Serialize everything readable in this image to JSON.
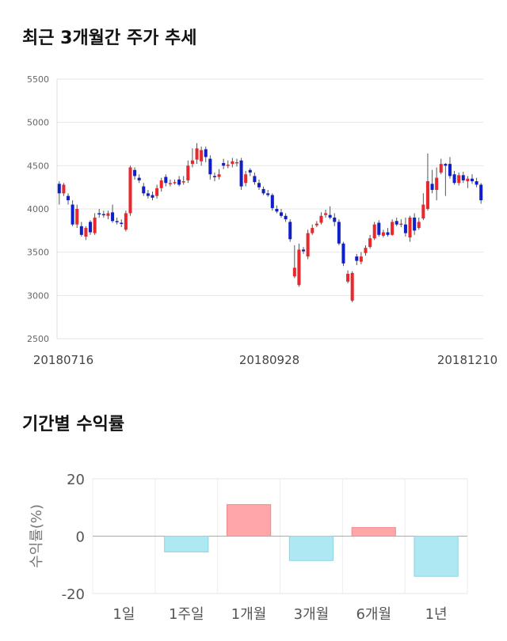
{
  "page": {
    "title_price": "최근 3개월간 주가 추세",
    "title_returns": "기간별 수익률"
  },
  "colors": {
    "up": "#e8282c",
    "down": "#1020c8",
    "pos_bar": "#ffa6a8",
    "neg_bar": "#aee8f2"
  },
  "chart_data": [
    {
      "type": "candlestick",
      "title": "최근 3개월간 주가 추세",
      "ylim": [
        2500,
        5500
      ],
      "y_ticks": [
        5500,
        5000,
        4500,
        4000,
        3500,
        3000,
        2500
      ],
      "x_tick_labels": [
        "20180716",
        "20180928",
        "20181210"
      ],
      "candles": [
        [
          4290,
          4180,
          4320,
          4050
        ],
        [
          4180,
          4280,
          4300,
          4150
        ],
        [
          4150,
          4100,
          4180,
          4050
        ],
        [
          4050,
          3820,
          4100,
          3800
        ],
        [
          3820,
          4000,
          4050,
          3780
        ],
        [
          3800,
          3700,
          3850,
          3680
        ],
        [
          3680,
          3780,
          3800,
          3640
        ],
        [
          3850,
          3730,
          3870,
          3700
        ],
        [
          3720,
          3900,
          3950,
          3700
        ],
        [
          3950,
          3940,
          4000,
          3900
        ],
        [
          3940,
          3930,
          3980,
          3900
        ],
        [
          3920,
          3950,
          3980,
          3880
        ],
        [
          3960,
          3860,
          4050,
          3840
        ],
        [
          3860,
          3850,
          3900,
          3820
        ],
        [
          3840,
          3830,
          3880,
          3790
        ],
        [
          3760,
          3950,
          3980,
          3740
        ],
        [
          3950,
          4480,
          4500,
          3920
        ],
        [
          4450,
          4380,
          4480,
          4340
        ],
        [
          4360,
          4330,
          4400,
          4300
        ],
        [
          4260,
          4180,
          4300,
          4150
        ],
        [
          4180,
          4150,
          4220,
          4120
        ],
        [
          4160,
          4130,
          4200,
          4100
        ],
        [
          4150,
          4240,
          4280,
          4120
        ],
        [
          4240,
          4330,
          4360,
          4200
        ],
        [
          4370,
          4300,
          4400,
          4260
        ],
        [
          4290,
          4300,
          4340,
          4260
        ],
        [
          4300,
          4310,
          4340,
          4280
        ],
        [
          4340,
          4280,
          4380,
          4260
        ],
        [
          4310,
          4320,
          4380,
          4280
        ],
        [
          4330,
          4500,
          4560,
          4300
        ],
        [
          4520,
          4560,
          4700,
          4480
        ],
        [
          4570,
          4700,
          4760,
          4520
        ],
        [
          4550,
          4680,
          4720,
          4500
        ],
        [
          4690,
          4600,
          4720,
          4540
        ],
        [
          4580,
          4400,
          4620,
          4340
        ],
        [
          4380,
          4370,
          4420,
          4320
        ],
        [
          4370,
          4400,
          4460,
          4340
        ],
        [
          4530,
          4500,
          4580,
          4460
        ],
        [
          4500,
          4510,
          4560,
          4470
        ],
        [
          4520,
          4550,
          4590,
          4480
        ],
        [
          4540,
          4540,
          4580,
          4490
        ],
        [
          4560,
          4260,
          4590,
          4220
        ],
        [
          4300,
          4400,
          4440,
          4260
        ],
        [
          4450,
          4420,
          4470,
          4380
        ],
        [
          4380,
          4310,
          4420,
          4280
        ],
        [
          4300,
          4250,
          4340,
          4220
        ],
        [
          4230,
          4180,
          4260,
          4160
        ],
        [
          4180,
          4160,
          4220,
          4140
        ],
        [
          4160,
          4010,
          4180,
          3980
        ],
        [
          4000,
          3970,
          4040,
          3950
        ],
        [
          3960,
          3920,
          4000,
          3900
        ],
        [
          3920,
          3880,
          3950,
          3850
        ],
        [
          3850,
          3650,
          3880,
          3620
        ],
        [
          3220,
          3320,
          3580,
          3200
        ],
        [
          3120,
          3530,
          3600,
          3100
        ],
        [
          3530,
          3510,
          3560,
          3480
        ],
        [
          3450,
          3720,
          3760,
          3420
        ],
        [
          3720,
          3780,
          3820,
          3700
        ],
        [
          3810,
          3830,
          3860,
          3790
        ],
        [
          3840,
          3920,
          3960,
          3820
        ],
        [
          3930,
          3950,
          3990,
          3900
        ],
        [
          3930,
          3900,
          4030,
          3880
        ],
        [
          3900,
          3850,
          3950,
          3800
        ],
        [
          3850,
          3600,
          3880,
          3580
        ],
        [
          3600,
          3370,
          3620,
          3340
        ],
        [
          3160,
          3250,
          3290,
          3140
        ],
        [
          2940,
          3260,
          3280,
          2920
        ],
        [
          3450,
          3400,
          3480,
          3350
        ],
        [
          3390,
          3450,
          3500,
          3360
        ],
        [
          3490,
          3550,
          3580,
          3460
        ],
        [
          3560,
          3660,
          3700,
          3540
        ],
        [
          3660,
          3820,
          3850,
          3640
        ],
        [
          3840,
          3700,
          3870,
          3680
        ],
        [
          3690,
          3730,
          3760,
          3670
        ],
        [
          3730,
          3700,
          3780,
          3680
        ],
        [
          3700,
          3850,
          3880,
          3690
        ],
        [
          3860,
          3820,
          3900,
          3800
        ],
        [
          3820,
          3830,
          3880,
          3790
        ],
        [
          3820,
          3720,
          3900,
          3680
        ],
        [
          3670,
          3900,
          3920,
          3620
        ],
        [
          3900,
          3750,
          3950,
          3700
        ],
        [
          3780,
          3850,
          3900,
          3760
        ],
        [
          3890,
          4050,
          4180,
          3870
        ],
        [
          4000,
          4320,
          4640,
          3980
        ],
        [
          4290,
          4220,
          4450,
          4180
        ],
        [
          4220,
          4360,
          4480,
          4100
        ],
        [
          4420,
          4520,
          4580,
          4400
        ],
        [
          4520,
          4500,
          4530,
          4150
        ],
        [
          4520,
          4380,
          4600,
          4350
        ],
        [
          4400,
          4300,
          4440,
          4280
        ],
        [
          4300,
          4390,
          4420,
          4270
        ],
        [
          4390,
          4330,
          4430,
          4300
        ],
        [
          4320,
          4350,
          4380,
          4240
        ],
        [
          4350,
          4320,
          4400,
          4290
        ],
        [
          4320,
          4280,
          4360,
          4250
        ],
        [
          4280,
          4100,
          4300,
          4060
        ]
      ]
    },
    {
      "type": "bar",
      "ylabel": "수익률(%)",
      "ylim": [
        -20,
        20
      ],
      "y_ticks": [
        20,
        0,
        -20
      ],
      "categories": [
        "1일",
        "1주일",
        "1개월",
        "3개월",
        "6개월",
        "1년"
      ],
      "values": [
        0,
        -5.5,
        11,
        -8.5,
        3,
        -14
      ]
    }
  ]
}
